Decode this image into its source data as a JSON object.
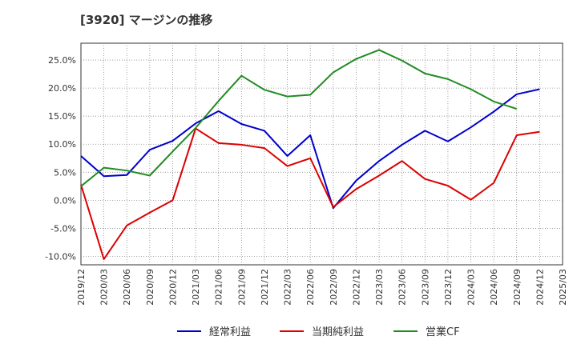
{
  "chart_data": {
    "type": "line",
    "title": "[3920]  マージンの推移",
    "xlabel": "",
    "ylabel": "",
    "x": [
      "2019/12",
      "2020/03",
      "2020/06",
      "2020/09",
      "2020/12",
      "2021/03",
      "2021/06",
      "2021/09",
      "2021/12",
      "2022/03",
      "2022/06",
      "2022/09",
      "2022/12",
      "2023/03",
      "2023/06",
      "2023/09",
      "2023/12",
      "2024/03",
      "2024/06",
      "2024/09",
      "2024/12",
      "2025/03"
    ],
    "yticks": [
      "25.0%",
      "20.0%",
      "15.0%",
      "10.0%",
      "5.0%",
      "0.0%",
      "-5.0%",
      "-10.0%"
    ],
    "ylim": [
      -11.5,
      28.0
    ],
    "grid": true,
    "legend_position": "bottom",
    "series": [
      {
        "name": "経常利益",
        "color": "#0000cc",
        "values": [
          7.9,
          4.3,
          4.5,
          9.0,
          10.6,
          13.7,
          15.9,
          13.6,
          12.4,
          7.9,
          11.6,
          -1.4,
          3.5,
          7.0,
          9.9,
          12.4,
          10.5,
          13.0,
          15.8,
          18.9,
          19.8,
          null
        ]
      },
      {
        "name": "当期純利益",
        "color": "#dd0000",
        "values": [
          2.8,
          -10.5,
          -4.5,
          -2.2,
          0.0,
          12.8,
          10.2,
          9.9,
          9.3,
          6.1,
          7.5,
          -1.2,
          2.0,
          4.4,
          7.0,
          3.8,
          2.6,
          0.1,
          3.1,
          11.6,
          12.2,
          null
        ]
      },
      {
        "name": "営業CF",
        "color": "#228b22",
        "values": [
          2.5,
          5.8,
          5.3,
          4.4,
          8.7,
          12.9,
          17.7,
          22.2,
          19.7,
          18.5,
          18.8,
          22.8,
          25.2,
          26.8,
          24.9,
          22.6,
          21.6,
          19.8,
          17.6,
          16.3,
          null,
          null
        ]
      }
    ]
  }
}
